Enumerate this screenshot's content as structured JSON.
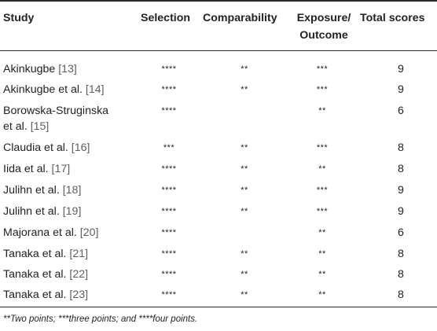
{
  "headers": {
    "study": "Study",
    "selection": "Selection",
    "comparability": "Comparability",
    "exposure_line1": "Exposure/",
    "exposure_line2": "Outcome",
    "total": "Total scores"
  },
  "rows": [
    {
      "study": "Akinkugbe ",
      "ref": "[13]",
      "selection": "****",
      "comparability": "**",
      "exposure": "***",
      "total": "9"
    },
    {
      "study": "Akinkugbe et al. ",
      "ref": "[14]",
      "selection": "****",
      "comparability": "**",
      "exposure": "***",
      "total": "9"
    },
    {
      "study": "Borowska-Struginska",
      "study2": "et al. ",
      "ref": "[15]",
      "selection": "****",
      "comparability": "",
      "exposure": "**",
      "total": "6"
    },
    {
      "study": "Claudia et al. ",
      "ref": "[16]",
      "selection": "***",
      "comparability": "**",
      "exposure": "***",
      "total": "8"
    },
    {
      "study": "Iida et al. ",
      "ref": "[17]",
      "selection": "****",
      "comparability": "**",
      "exposure": "**",
      "total": "8"
    },
    {
      "study": "Julihn et al. ",
      "ref": "[18]",
      "selection": "****",
      "comparability": "**",
      "exposure": "***",
      "total": "9"
    },
    {
      "study": "Julihn et al. ",
      "ref": "[19]",
      "selection": "****",
      "comparability": "**",
      "exposure": "***",
      "total": "9"
    },
    {
      "study": "Majorana et al. ",
      "ref": "[20]",
      "selection": "****",
      "comparability": "",
      "exposure": "**",
      "total": "6"
    },
    {
      "study": "Tanaka et al. ",
      "ref": "[21]",
      "selection": "****",
      "comparability": "**",
      "exposure": "**",
      "total": "8"
    },
    {
      "study": "Tanaka et al. ",
      "ref": "[22]",
      "selection": "****",
      "comparability": "**",
      "exposure": "**",
      "total": "8"
    },
    {
      "study": "Tanaka et al. ",
      "ref": "[23]",
      "selection": "****",
      "comparability": "**",
      "exposure": "**",
      "total": "8"
    }
  ],
  "footnote": "**Two points; ***three points; and ****four points."
}
